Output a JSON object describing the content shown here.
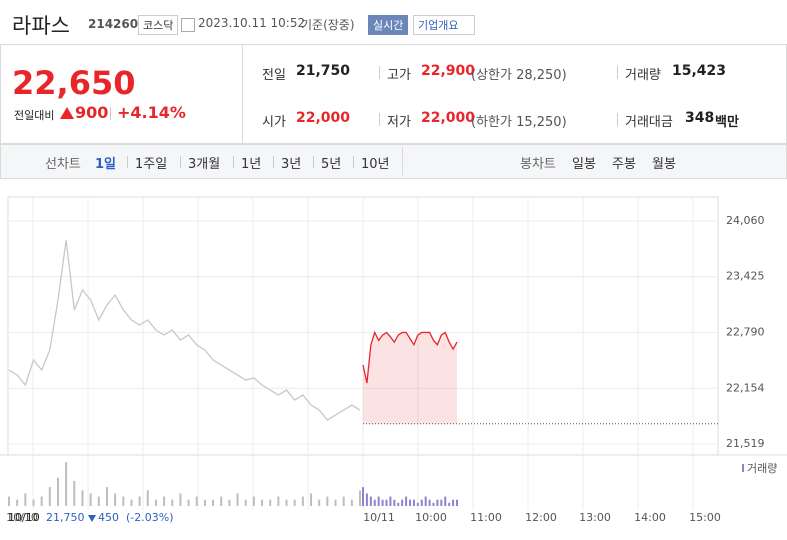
{
  "header": {
    "name": "라파스",
    "code": "214260",
    "market": "코스닥",
    "timestamp": "2023.10.11 10:52",
    "status": "기준(장중)",
    "realtime": "실시간",
    "company_info": "기업개요"
  },
  "quote": {
    "price": "22,650",
    "change_label": "전일대비",
    "change": "900",
    "change_rate": "+4.14%",
    "items": [
      {
        "label": "전일",
        "value": "21,750"
      },
      {
        "label": "고가",
        "value": "22,900",
        "note": "(상한가 28,250)"
      },
      {
        "label": "거래량",
        "value": "15,423"
      },
      {
        "label": "시가",
        "value": "22,000"
      },
      {
        "label": "저가",
        "value": "22,000",
        "note": "(하한가 15,250)"
      },
      {
        "label": "거래대금",
        "value": "348",
        "unit": "백만"
      }
    ]
  },
  "tabs": {
    "line_label": "선차트",
    "line": [
      "1일",
      "1주일",
      "3개월",
      "1년",
      "3년",
      "5년",
      "10년"
    ],
    "candle_label": "봉차트",
    "candle": [
      "일봉",
      "주봉",
      "월봉"
    ]
  },
  "chart_data": {
    "type": "line",
    "series": [
      {
        "color": "#c8c8c8",
        "values": [
          22362,
          22305,
          22191,
          22476,
          22362,
          22590,
          23160,
          23844,
          23046,
          23274,
          23160,
          22932,
          23103,
          23217,
          23046,
          22932,
          22875,
          22932,
          22818,
          22761,
          22818,
          22704,
          22761,
          22647,
          22590,
          22476,
          22419,
          22362,
          22305,
          22248,
          22271,
          22191,
          22134,
          22077,
          22134,
          22020,
          22077,
          21963,
          21906,
          21792,
          21849,
          21906,
          21963,
          21906
        ]
      },
      {
        "color": "#e8262a",
        "values": [
          22420,
          22214,
          22647,
          22790,
          22700,
          22760,
          22790,
          22740,
          22680,
          22760,
          22790,
          22790,
          22720,
          22650,
          22760,
          22790,
          22790,
          22790,
          22700,
          22650,
          22760,
          22790,
          22680,
          22600,
          22680
        ]
      }
    ],
    "prev_close": 21750,
    "ylim": [
      21519,
      24060
    ],
    "yticks": [
      {
        "value": 21519,
        "label": "21,519"
      },
      {
        "value": 22154,
        "label": "22,154"
      },
      {
        "value": 22790,
        "label": "22,790"
      },
      {
        "value": 23425,
        "label": "23,425"
      },
      {
        "value": 24060,
        "label": "24,060"
      }
    ],
    "x_labels": [
      "10/10",
      "10/11",
      "10:00",
      "11:00",
      "12:00",
      "13:00",
      "14:00",
      "15:00"
    ],
    "volume_label": "거래량",
    "volume": [
      {
        "color": "#bdbdbd",
        "values": [
          3,
          2,
          4,
          2,
          3,
          6,
          9,
          14,
          8,
          5,
          4,
          3,
          6,
          4,
          3,
          2,
          3,
          5,
          2,
          3,
          2,
          4,
          2,
          3,
          2,
          2,
          3,
          2,
          4,
          2,
          3,
          2,
          2,
          3,
          2,
          2,
          3,
          4,
          2,
          3,
          2,
          3,
          2,
          5
        ]
      },
      {
        "color": "#8c83d0",
        "values": [
          6,
          4,
          3,
          2,
          3,
          2,
          2,
          3,
          2,
          1,
          2,
          3,
          2,
          2,
          1,
          2,
          3,
          2,
          1,
          2,
          2,
          3,
          1,
          2,
          2
        ]
      }
    ]
  },
  "footer": {
    "date": "10/10",
    "close": "21,750",
    "change": "450",
    "change_rate": "(-2.03%)"
  }
}
